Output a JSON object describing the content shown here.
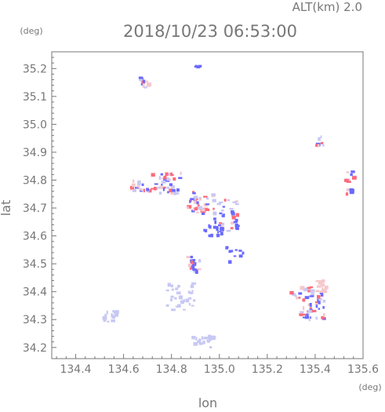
{
  "chart_data": {
    "type": "scatter",
    "title": "2018/10/23 06:53:00",
    "subtitle": "ALT(km) 2.0",
    "xlabel": "lon",
    "ylabel": "lat",
    "xunit": "(deg)",
    "yunit": "(deg)",
    "xlim": [
      134.3,
      135.6
    ],
    "ylim": [
      34.16,
      35.26
    ],
    "xticks": [
      "134.4",
      "134.6",
      "134.8",
      "135.0",
      "135.2",
      "135.4",
      "135.6"
    ],
    "yticks": [
      "34.2",
      "34.3",
      "34.4",
      "34.5",
      "34.6",
      "34.7",
      "34.8",
      "34.9",
      "35.0",
      "35.1",
      "35.2"
    ],
    "grid": false,
    "colors": {
      "approaching": "#6a6aff",
      "receding": "#ff6a7a",
      "weak_approaching": "#c8c8f4",
      "weak_receding": "#f4c8cc",
      "axis": "#777777"
    },
    "echo_clusters": [
      {
        "lon": 134.69,
        "lat": 35.15,
        "spread_lon": 0.02,
        "spread_lat": 0.02,
        "points": 12,
        "tone": "mixed"
      },
      {
        "lon": 134.91,
        "lat": 35.21,
        "spread_lon": 0.01,
        "spread_lat": 0.005,
        "points": 4,
        "tone": "approaching"
      },
      {
        "lon": 134.78,
        "lat": 34.79,
        "spread_lon": 0.06,
        "spread_lat": 0.04,
        "points": 40,
        "tone": "mixed"
      },
      {
        "lon": 134.67,
        "lat": 34.78,
        "spread_lon": 0.04,
        "spread_lat": 0.02,
        "points": 18,
        "tone": "mixed"
      },
      {
        "lon": 134.92,
        "lat": 34.72,
        "spread_lon": 0.06,
        "spread_lat": 0.04,
        "points": 36,
        "tone": "mixed"
      },
      {
        "lon": 135.03,
        "lat": 34.67,
        "spread_lon": 0.05,
        "spread_lat": 0.06,
        "points": 34,
        "tone": "mixed"
      },
      {
        "lon": 134.97,
        "lat": 34.62,
        "spread_lon": 0.05,
        "spread_lat": 0.02,
        "points": 18,
        "tone": "approaching"
      },
      {
        "lon": 134.9,
        "lat": 34.5,
        "spread_lon": 0.03,
        "spread_lat": 0.03,
        "points": 18,
        "tone": "mixed"
      },
      {
        "lon": 135.06,
        "lat": 34.53,
        "spread_lon": 0.04,
        "spread_lat": 0.03,
        "points": 10,
        "tone": "approaching"
      },
      {
        "lon": 134.84,
        "lat": 34.38,
        "spread_lon": 0.06,
        "spread_lat": 0.05,
        "points": 30,
        "tone": "weak_approaching"
      },
      {
        "lon": 134.55,
        "lat": 34.31,
        "spread_lon": 0.03,
        "spread_lat": 0.02,
        "points": 14,
        "tone": "weak_approaching"
      },
      {
        "lon": 134.94,
        "lat": 34.22,
        "spread_lon": 0.05,
        "spread_lat": 0.02,
        "points": 22,
        "tone": "weak_approaching"
      },
      {
        "lon": 135.39,
        "lat": 34.36,
        "spread_lon": 0.05,
        "spread_lat": 0.06,
        "points": 50,
        "tone": "mixed"
      },
      {
        "lon": 135.43,
        "lat": 34.43,
        "spread_lon": 0.02,
        "spread_lat": 0.03,
        "points": 14,
        "tone": "weak_receding"
      },
      {
        "lon": 135.55,
        "lat": 34.79,
        "spread_lon": 0.02,
        "spread_lat": 0.04,
        "points": 14,
        "tone": "mixed"
      },
      {
        "lon": 135.42,
        "lat": 34.94,
        "spread_lon": 0.02,
        "spread_lat": 0.02,
        "points": 8,
        "tone": "mixed"
      },
      {
        "lon": 135.32,
        "lat": 34.39,
        "spread_lon": 0.02,
        "spread_lat": 0.015,
        "points": 6,
        "tone": "mixed"
      }
    ]
  }
}
